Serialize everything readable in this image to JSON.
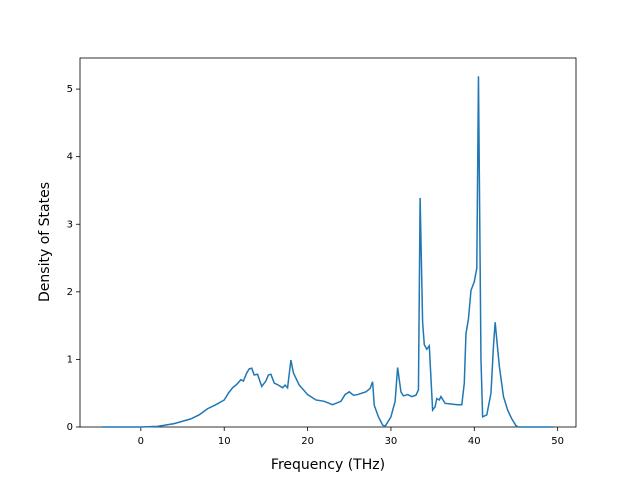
{
  "chart_data": {
    "type": "line",
    "xlabel": "Frequency (THz)",
    "ylabel": "Density of States",
    "xlim": [
      -7.3,
      52.2
    ],
    "ylim": [
      0,
      5.46
    ],
    "xticks": [
      0,
      10,
      20,
      30,
      40,
      50
    ],
    "yticks": [
      0,
      1,
      2,
      3,
      4,
      5
    ],
    "x": [
      -4.7,
      0,
      2,
      4,
      6,
      7,
      8,
      9,
      10,
      10.5,
      11,
      11.5,
      12,
      12.3,
      12.7,
      13,
      13.3,
      13.6,
      14,
      14.5,
      15,
      15.3,
      15.6,
      16,
      16.5,
      17,
      17.3,
      17.6,
      18,
      18.3,
      19,
      20,
      21,
      22,
      23,
      24,
      24.5,
      25,
      25.5,
      26,
      27,
      27.5,
      27.8,
      28,
      28.5,
      29,
      29.3,
      30,
      30.5,
      30.8,
      31.2,
      31.5,
      32,
      32.5,
      33,
      33.3,
      33.5,
      33.8,
      34,
      34.3,
      34.6,
      35,
      35.3,
      35.5,
      35.8,
      36,
      36.5,
      38,
      38.5,
      38.8,
      39,
      39.3,
      39.6,
      40,
      40.3,
      40.5,
      40.8,
      41,
      41.5,
      42,
      42.3,
      42.5,
      43,
      43.5,
      44,
      44.5,
      45,
      45.3,
      49.5
    ],
    "series": [
      {
        "color": "#1f77b4",
        "values": [
          0,
          0,
          0.01,
          0.05,
          0.12,
          0.18,
          0.27,
          0.33,
          0.4,
          0.5,
          0.58,
          0.63,
          0.7,
          0.68,
          0.8,
          0.86,
          0.87,
          0.77,
          0.78,
          0.6,
          0.68,
          0.77,
          0.78,
          0.65,
          0.62,
          0.58,
          0.62,
          0.58,
          0.99,
          0.8,
          0.62,
          0.48,
          0.4,
          0.38,
          0.33,
          0.38,
          0.48,
          0.52,
          0.47,
          0.48,
          0.52,
          0.57,
          0.67,
          0.32,
          0.15,
          0.03,
          0.01,
          0.15,
          0.38,
          0.88,
          0.52,
          0.46,
          0.48,
          0.45,
          0.47,
          0.55,
          3.39,
          1.55,
          1.22,
          1.15,
          1.2,
          0.25,
          0.3,
          0.42,
          0.4,
          0.45,
          0.35,
          0.33,
          0.33,
          0.65,
          1.38,
          1.6,
          2.02,
          2.15,
          2.35,
          5.19,
          1.0,
          0.15,
          0.18,
          0.5,
          1.2,
          1.55,
          0.9,
          0.45,
          0.25,
          0.12,
          0.02,
          0,
          0
        ]
      }
    ]
  }
}
